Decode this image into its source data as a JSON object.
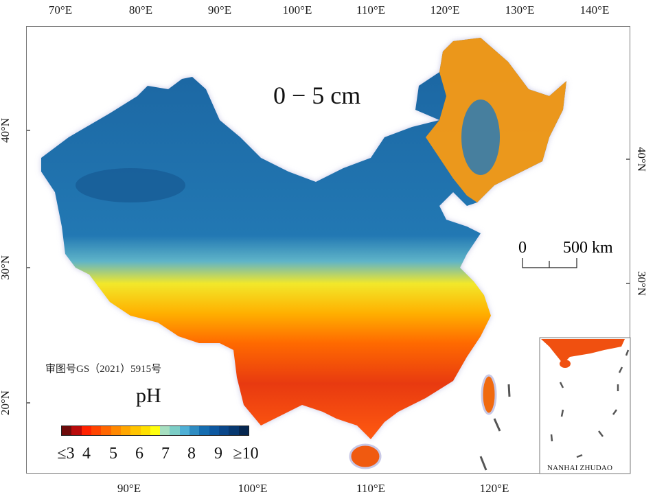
{
  "map": {
    "depth_label": "0 − 5 cm",
    "approval_number": "审图号GS（2021）5915号",
    "variable": "pH",
    "inset_label": "NANHAI ZHUDAO",
    "scale_bar": {
      "start": "0",
      "end": "500 km"
    }
  },
  "axes": {
    "top": [
      "70°E",
      "80°E",
      "90°E",
      "100°E",
      "110°E",
      "120°E",
      "130°E",
      "140°E"
    ],
    "bottom": [
      "90°E",
      "100°E",
      "110°E",
      "120°E"
    ],
    "left": [
      "40°N",
      "30°N",
      "20°N"
    ],
    "right": [
      "40°N",
      "30°N"
    ]
  },
  "legend": {
    "labels": [
      "≤3",
      "4",
      "5",
      "6",
      "7",
      "8",
      "9",
      "≥10"
    ],
    "colors": [
      "#6e0a0a",
      "#b80a0a",
      "#ff2200",
      "#ff4400",
      "#ff6600",
      "#ff8800",
      "#ffa600",
      "#ffc400",
      "#ffe000",
      "#ffff10",
      "#a6dfc0",
      "#7ccdc6",
      "#4fb0d6",
      "#2e8cc2",
      "#156db0",
      "#0d58a0",
      "#0a478a",
      "#073870",
      "#052650"
    ]
  },
  "colors": {
    "acid": "#e83a10",
    "neutral": "#f5e020",
    "alkaline": "#1c67a3",
    "boundary_halo": "#c8c8e6"
  }
}
